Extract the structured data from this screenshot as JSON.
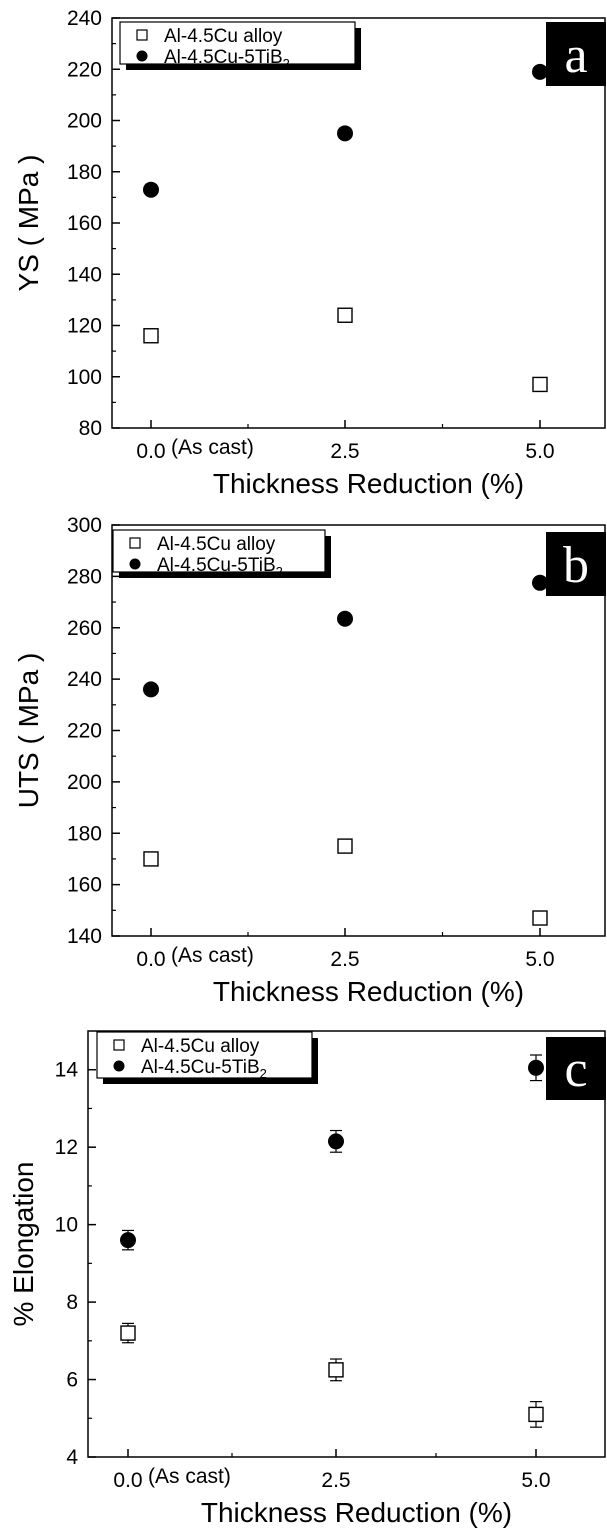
{
  "chart_data": [
    {
      "type": "scatter",
      "panel_label": "a",
      "xlabel": "Thickness Reduction (%)",
      "ylabel": "YS ( MPa )",
      "ylim": [
        80,
        240
      ],
      "yticks": [
        "80",
        "100",
        "120",
        "140",
        "160",
        "180",
        "200",
        "220",
        "240"
      ],
      "xticks": [
        "0.0",
        "2.5",
        "5.0"
      ],
      "x_annotation": "(As cast)",
      "legend_position": "top-left",
      "series": [
        {
          "name": "Al-4.5Cu alloy",
          "marker": "open-square",
          "x": [
            0.0,
            2.5,
            5.0
          ],
          "y": [
            116,
            124,
            97
          ]
        },
        {
          "name": "Al-4.5Cu-5TiB",
          "name_sub": "2",
          "marker": "filled-circle",
          "x": [
            0.0,
            2.5,
            5.0
          ],
          "y": [
            173,
            195,
            219
          ]
        }
      ]
    },
    {
      "type": "scatter",
      "panel_label": "b",
      "xlabel": "Thickness Reduction (%)",
      "ylabel": "UTS ( MPa )",
      "ylim": [
        140,
        300
      ],
      "yticks": [
        "140",
        "160",
        "180",
        "200",
        "220",
        "240",
        "260",
        "280",
        "300"
      ],
      "xticks": [
        "0.0",
        "2.5",
        "5.0"
      ],
      "x_annotation": "(As cast)",
      "legend_position": "top-left",
      "series": [
        {
          "name": "Al-4.5Cu alloy",
          "marker": "open-square",
          "x": [
            0.0,
            2.5,
            5.0
          ],
          "y": [
            170,
            175,
            147
          ]
        },
        {
          "name": "Al-4.5Cu-5TiB",
          "name_sub": "2",
          "marker": "filled-circle",
          "x": [
            0.0,
            2.5,
            5.0
          ],
          "y": [
            236,
            263.5,
            277.5
          ]
        }
      ]
    },
    {
      "type": "scatter",
      "panel_label": "c",
      "xlabel": "Thickness Reduction (%)",
      "ylabel": "% Elongation",
      "ylim": [
        4,
        15
      ],
      "yticks": [
        "4",
        "6",
        "8",
        "10",
        "12",
        "14"
      ],
      "xticks": [
        "0.0",
        "2.5",
        "5.0"
      ],
      "x_annotation": "(As cast)",
      "legend_position": "top-left",
      "error_bars": true,
      "series": [
        {
          "name": "Al-4.5Cu alloy",
          "marker": "open-square",
          "x": [
            0.0,
            2.5,
            5.0
          ],
          "y": [
            7.2,
            6.25,
            5.1
          ],
          "err": [
            0.25,
            0.28,
            0.33
          ]
        },
        {
          "name": "Al-4.5Cu-5TiB",
          "name_sub": "2",
          "marker": "filled-circle",
          "x": [
            0.0,
            2.5,
            5.0
          ],
          "y": [
            9.6,
            12.15,
            14.05
          ],
          "err": [
            0.25,
            0.28,
            0.33
          ]
        }
      ]
    }
  ]
}
